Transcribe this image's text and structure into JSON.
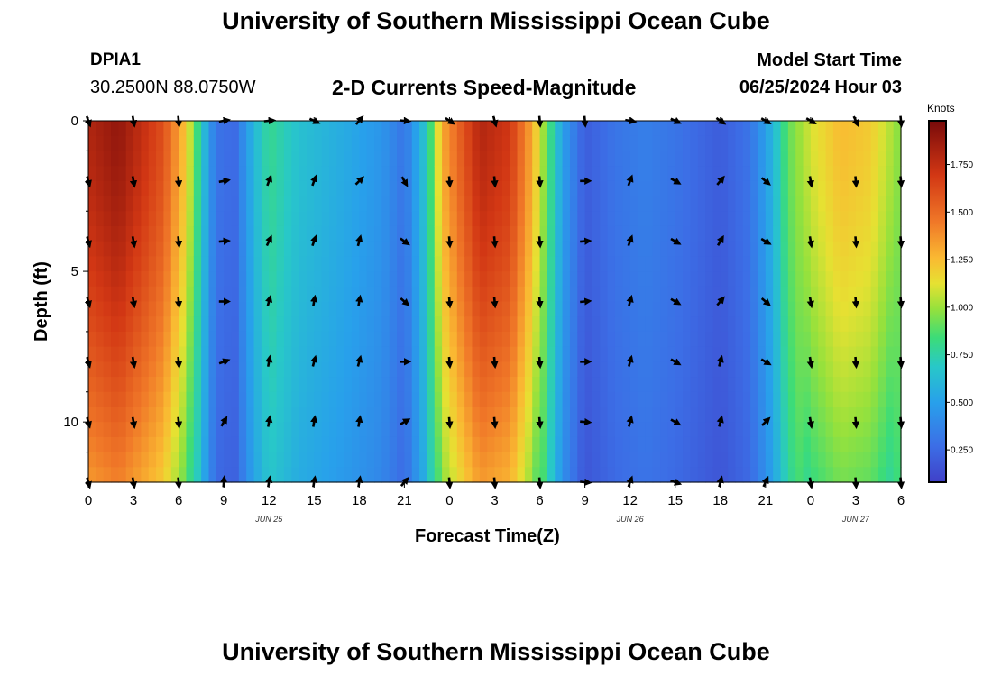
{
  "header": {
    "title": "University of Southern Mississippi Ocean Cube",
    "station_id": "DPIA1",
    "coordinates": "30.2500N  88.0750W",
    "subtitle": "2-D Currents Speed-Magnitude",
    "model_start_label": "Model Start Time",
    "model_start_value": "06/25/2024 Hour 03"
  },
  "footer": {
    "title": "University of Southern Mississippi Ocean Cube"
  },
  "chart_data": {
    "type": "heatmap",
    "title": "2-D Currents Speed-Magnitude",
    "xlabel": "Forecast Time(Z)",
    "ylabel": "Depth (ft)",
    "x_range": [
      0,
      54
    ],
    "y_range": [
      0,
      12
    ],
    "x_tick_labels": [
      "0",
      "3",
      "6",
      "9",
      "12",
      "15",
      "18",
      "21",
      "0",
      "3",
      "6",
      "9",
      "12",
      "15",
      "18",
      "21",
      "0",
      "3",
      "6"
    ],
    "date_labels": [
      {
        "label": "JUN 25",
        "hour": 12
      },
      {
        "label": "JUN 26",
        "hour": 36
      },
      {
        "label": "JUN 27",
        "hour": 51
      }
    ],
    "y_tick_labels": [
      {
        "label": "0",
        "depth": 0
      },
      {
        "label": "5",
        "depth": 5
      },
      {
        "label": "10",
        "depth": 10
      }
    ],
    "colorbar": {
      "unit": "Knots",
      "min": 0.08,
      "max": 1.98,
      "ticks": [
        "0.250",
        "0.500",
        "0.750",
        "1.000",
        "1.250",
        "1.500",
        "1.750"
      ],
      "tick_values": [
        0.25,
        0.5,
        0.75,
        1.0,
        1.25,
        1.5,
        1.75
      ]
    },
    "speed_profile_knots": [
      {
        "hour": 0,
        "speed": 1.8
      },
      {
        "hour": 2,
        "speed": 1.9
      },
      {
        "hour": 5,
        "speed": 1.6
      },
      {
        "hour": 6.5,
        "speed": 1.2
      },
      {
        "hour": 7.5,
        "speed": 0.7
      },
      {
        "hour": 8.5,
        "speed": 0.3
      },
      {
        "hour": 9.7,
        "speed": 0.25
      },
      {
        "hour": 11,
        "speed": 0.6
      },
      {
        "hour": 12,
        "speed": 0.8
      },
      {
        "hour": 14,
        "speed": 0.65
      },
      {
        "hour": 17,
        "speed": 0.55
      },
      {
        "hour": 19.5,
        "speed": 0.45
      },
      {
        "hour": 21,
        "speed": 0.3
      },
      {
        "hour": 22.5,
        "speed": 0.7
      },
      {
        "hour": 23.5,
        "speed": 1.3
      },
      {
        "hour": 26,
        "speed": 1.8
      },
      {
        "hour": 28,
        "speed": 1.7
      },
      {
        "hour": 29.5,
        "speed": 1.3
      },
      {
        "hour": 30.5,
        "speed": 0.9
      },
      {
        "hour": 31.5,
        "speed": 0.5
      },
      {
        "hour": 33,
        "speed": 0.2
      },
      {
        "hour": 35,
        "speed": 0.3
      },
      {
        "hour": 37,
        "speed": 0.35
      },
      {
        "hour": 39,
        "speed": 0.3
      },
      {
        "hour": 42,
        "speed": 0.2
      },
      {
        "hour": 44,
        "speed": 0.3
      },
      {
        "hour": 45.5,
        "speed": 0.6
      },
      {
        "hour": 46.5,
        "speed": 0.9
      },
      {
        "hour": 48,
        "speed": 1.1
      },
      {
        "hour": 50,
        "speed": 1.25
      },
      {
        "hour": 52,
        "speed": 1.2
      },
      {
        "hour": 54,
        "speed": 0.95
      }
    ],
    "vector_times": [
      0,
      3,
      6,
      9,
      12,
      15,
      18,
      21,
      24,
      27,
      30,
      33,
      36,
      39,
      42,
      45,
      48,
      51,
      54
    ],
    "vector_depths": [
      0,
      2,
      4,
      6,
      8,
      10,
      12
    ],
    "vector_directions_deg": [
      [
        160,
        170,
        175,
        80,
        85,
        115,
        40,
        95,
        125,
        165,
        175,
        175,
        100,
        115,
        125,
        120,
        120,
        155,
        175
      ],
      [
        165,
        170,
        175,
        80,
        20,
        20,
        45,
        150,
        175,
        175,
        175,
        90,
        20,
        120,
        40,
        130,
        170,
        175,
        175
      ],
      [
        165,
        170,
        175,
        85,
        25,
        20,
        15,
        125,
        175,
        175,
        175,
        85,
        20,
        120,
        30,
        120,
        170,
        175,
        175
      ],
      [
        165,
        170,
        175,
        90,
        15,
        10,
        10,
        130,
        175,
        175,
        175,
        85,
        15,
        120,
        40,
        130,
        170,
        175,
        175
      ],
      [
        165,
        170,
        175,
        70,
        10,
        15,
        15,
        90,
        175,
        175,
        175,
        90,
        15,
        120,
        15,
        120,
        170,
        175,
        175
      ],
      [
        165,
        170,
        175,
        30,
        10,
        10,
        10,
        60,
        175,
        175,
        175,
        95,
        15,
        120,
        15,
        45,
        170,
        175,
        175
      ],
      [
        165,
        170,
        175,
        5,
        10,
        10,
        10,
        40,
        175,
        175,
        175,
        95,
        20,
        110,
        15,
        25,
        170,
        175,
        175
      ]
    ]
  }
}
